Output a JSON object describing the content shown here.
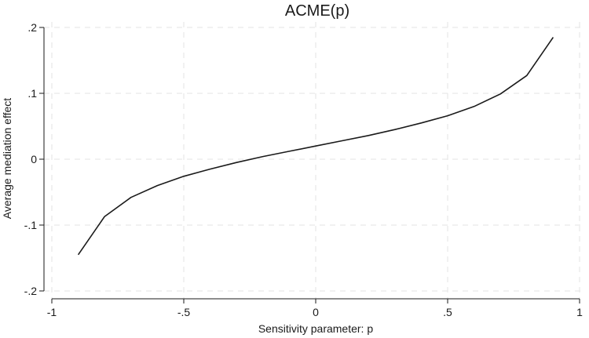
{
  "chart_data": {
    "type": "line",
    "title": "ACME(p)",
    "xlabel": "Sensitivity parameter: p",
    "ylabel": "Average mediation effect",
    "xlim": [
      -1,
      1
    ],
    "ylim": [
      -0.2,
      0.2
    ],
    "xticks": [
      -1,
      -0.5,
      0,
      0.5,
      1
    ],
    "xtick_labels": [
      "-1",
      "-.5",
      "0",
      ".5",
      "1"
    ],
    "yticks": [
      -0.2,
      -0.1,
      0,
      0.1,
      0.2
    ],
    "ytick_labels": [
      "-.2",
      "-.1",
      "0",
      ".1",
      ".2"
    ],
    "grid": true,
    "line_color": "#1a1a1a",
    "grid_color": "#e3e3e3",
    "series": [
      {
        "x": [
          -0.9,
          -0.8,
          -0.7,
          -0.6,
          -0.5,
          -0.4,
          -0.3,
          -0.2,
          -0.1,
          0,
          0.1,
          0.2,
          0.3,
          0.4,
          0.5,
          0.6,
          0.7,
          0.8,
          0.9
        ],
        "values": [
          -0.145,
          -0.087,
          -0.058,
          -0.04,
          -0.026,
          -0.015,
          -0.005,
          0.004,
          0.012,
          0.02,
          0.028,
          0.036,
          0.045,
          0.055,
          0.066,
          0.08,
          0.099,
          0.127,
          0.185
        ]
      }
    ]
  }
}
